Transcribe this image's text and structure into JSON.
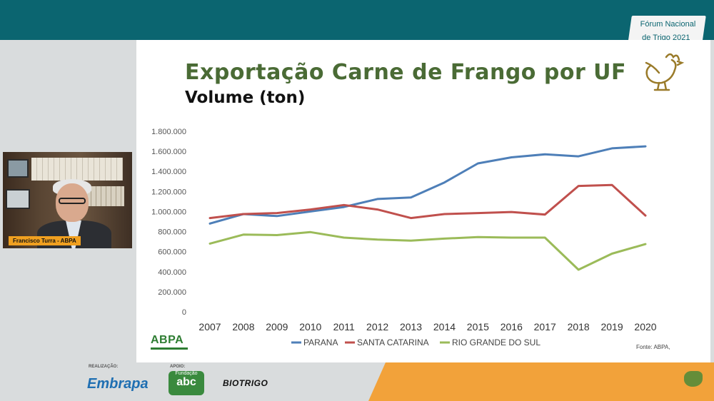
{
  "event": {
    "line1": "Fórum Nacional",
    "line2": "de Trigo 2021"
  },
  "slide": {
    "title": "Exportação Carne de Frango por UF",
    "subtitle": "Volume (ton)",
    "logo": "ABPA",
    "source": "Fonte: ABPA,"
  },
  "webcam": {
    "name": "Francisco Turra - ABPA"
  },
  "footer": {
    "realizacao": "REALIZAÇÃO:",
    "apoio": "APOIO:",
    "embrapa": "Embrapa",
    "fundacao_small": "Fundação",
    "fundacao_big": "abc",
    "biotrigo": "BIOTRIGO"
  },
  "colors": {
    "topbar": "#0b6570",
    "accent": "#f2a23a"
  },
  "chart_data": {
    "type": "line",
    "x": [
      "2007",
      "2008",
      "2009",
      "2010",
      "2011",
      "2012",
      "2013",
      "2014",
      "2015",
      "2016",
      "2017",
      "2018",
      "2019",
      "2020"
    ],
    "yticks": [
      "0",
      "200.000",
      "400.000",
      "600.000",
      "800.000",
      "1.000.000",
      "1.200.000",
      "1.400.000",
      "1.600.000",
      "1.800.000"
    ],
    "ylim": [
      0,
      1800000
    ],
    "legend_position": "bottom",
    "grid": false,
    "series": [
      {
        "name": "PARANA",
        "color": "#4e7fb8",
        "values": [
          880000,
          975000,
          955000,
          1000000,
          1045000,
          1125000,
          1140000,
          1290000,
          1480000,
          1540000,
          1570000,
          1550000,
          1630000,
          1650000
        ]
      },
      {
        "name": "SANTA CATARINA",
        "color": "#c0504d",
        "values": [
          935000,
          975000,
          985000,
          1020000,
          1065000,
          1020000,
          935000,
          975000,
          985000,
          995000,
          970000,
          1255000,
          1265000,
          960000
        ]
      },
      {
        "name": "RIO GRANDE DO SUL",
        "color": "#9bbb59",
        "values": [
          680000,
          770000,
          765000,
          795000,
          740000,
          720000,
          710000,
          730000,
          745000,
          740000,
          740000,
          420000,
          580000,
          675000
        ]
      }
    ]
  }
}
